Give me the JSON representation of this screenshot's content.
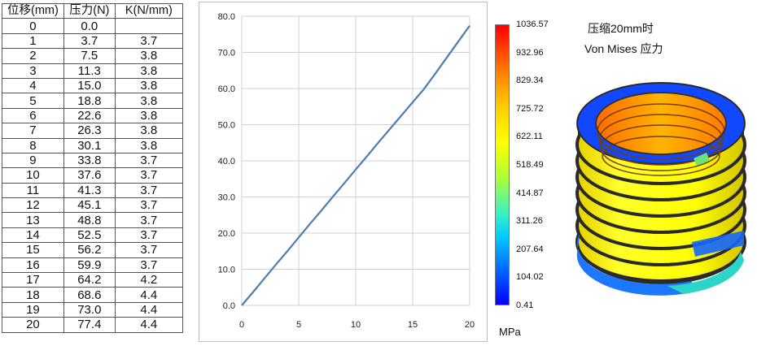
{
  "table": {
    "headers": [
      "位移(mm)",
      "压力(N)",
      "K(N/mm)"
    ],
    "rows": [
      [
        "0",
        "0.0",
        ""
      ],
      [
        "1",
        "3.7",
        "3.7"
      ],
      [
        "2",
        "7.5",
        "3.8"
      ],
      [
        "3",
        "11.3",
        "3.8"
      ],
      [
        "4",
        "15.0",
        "3.8"
      ],
      [
        "5",
        "18.8",
        "3.8"
      ],
      [
        "6",
        "22.6",
        "3.8"
      ],
      [
        "7",
        "26.3",
        "3.8"
      ],
      [
        "8",
        "30.1",
        "3.8"
      ],
      [
        "9",
        "33.8",
        "3.7"
      ],
      [
        "10",
        "37.6",
        "3.7"
      ],
      [
        "11",
        "41.3",
        "3.7"
      ],
      [
        "12",
        "45.1",
        "3.7"
      ],
      [
        "13",
        "48.8",
        "3.7"
      ],
      [
        "14",
        "52.5",
        "3.7"
      ],
      [
        "15",
        "56.2",
        "3.7"
      ],
      [
        "16",
        "59.9",
        "3.7"
      ],
      [
        "17",
        "64.2",
        "4.2"
      ],
      [
        "18",
        "68.6",
        "4.4"
      ],
      [
        "19",
        "73.0",
        "4.4"
      ],
      [
        "20",
        "77.4",
        "4.4"
      ]
    ]
  },
  "chart_data": {
    "type": "line",
    "x": [
      0,
      1,
      2,
      3,
      4,
      5,
      6,
      7,
      8,
      9,
      10,
      11,
      12,
      13,
      14,
      15,
      16,
      17,
      18,
      19,
      20
    ],
    "series": [
      {
        "values": [
          0.0,
          3.7,
          7.5,
          11.3,
          15.0,
          18.8,
          22.6,
          26.3,
          30.1,
          33.8,
          37.6,
          41.3,
          45.1,
          48.8,
          52.5,
          56.2,
          59.9,
          64.2,
          68.6,
          73.0,
          77.4
        ]
      }
    ],
    "xlim": [
      0,
      20
    ],
    "ylim": [
      0,
      80
    ],
    "x_ticks": [
      "0",
      "5",
      "10",
      "15",
      "20"
    ],
    "y_ticks": [
      "0.0",
      "10.0",
      "20.0",
      "30.0",
      "40.0",
      "50.0",
      "60.0",
      "70.0",
      "80.0"
    ],
    "grid": true,
    "line_color": "#4f7cae"
  },
  "fea": {
    "title_line1": "压缩20mm时",
    "title_line2": "Von Mises 应力",
    "colorbar_labels": [
      "1036.57",
      "932.96",
      "829.34",
      "725.72",
      "622.11",
      "518.49",
      "414.87",
      "311.26",
      "207.64",
      "104.02",
      "0.41"
    ],
    "unit": "MPa",
    "colors": {
      "high": "#ff0000",
      "mid": "#ffff00",
      "low": "#0000ff"
    }
  }
}
